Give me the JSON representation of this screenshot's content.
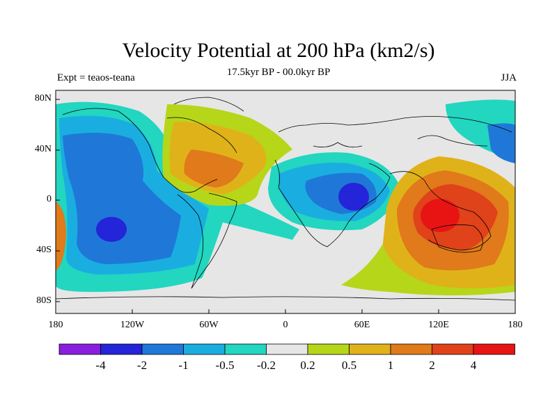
{
  "title": "Velocity Potential at 200 hPa (km2/s)",
  "subtitle": "17.5kyr BP - 00.0kyr BP",
  "left_label": "Expt = teaos-teana",
  "right_label": "JJA",
  "lat_ticks": [
    "80N",
    "40N",
    "0",
    "40S",
    "80S"
  ],
  "lon_ticks": [
    "180",
    "120W",
    "60W",
    "0",
    "60E",
    "120E",
    "180"
  ],
  "colorbar": {
    "labels": [
      "-4",
      "-2",
      "-1",
      "-0.5",
      "-0.2",
      "0.2",
      "0.5",
      "1",
      "2",
      "4"
    ],
    "colors": [
      "#8a1ee0",
      "#2424d8",
      "#1f78d8",
      "#1aaee0",
      "#22d6c0",
      "#e6e6e6",
      "#b6d61a",
      "#e0b21a",
      "#e07a1a",
      "#e0421a",
      "#e81414"
    ]
  },
  "colors": {
    "background_field": "#e6e6e6",
    "coastline": "#000000"
  }
}
